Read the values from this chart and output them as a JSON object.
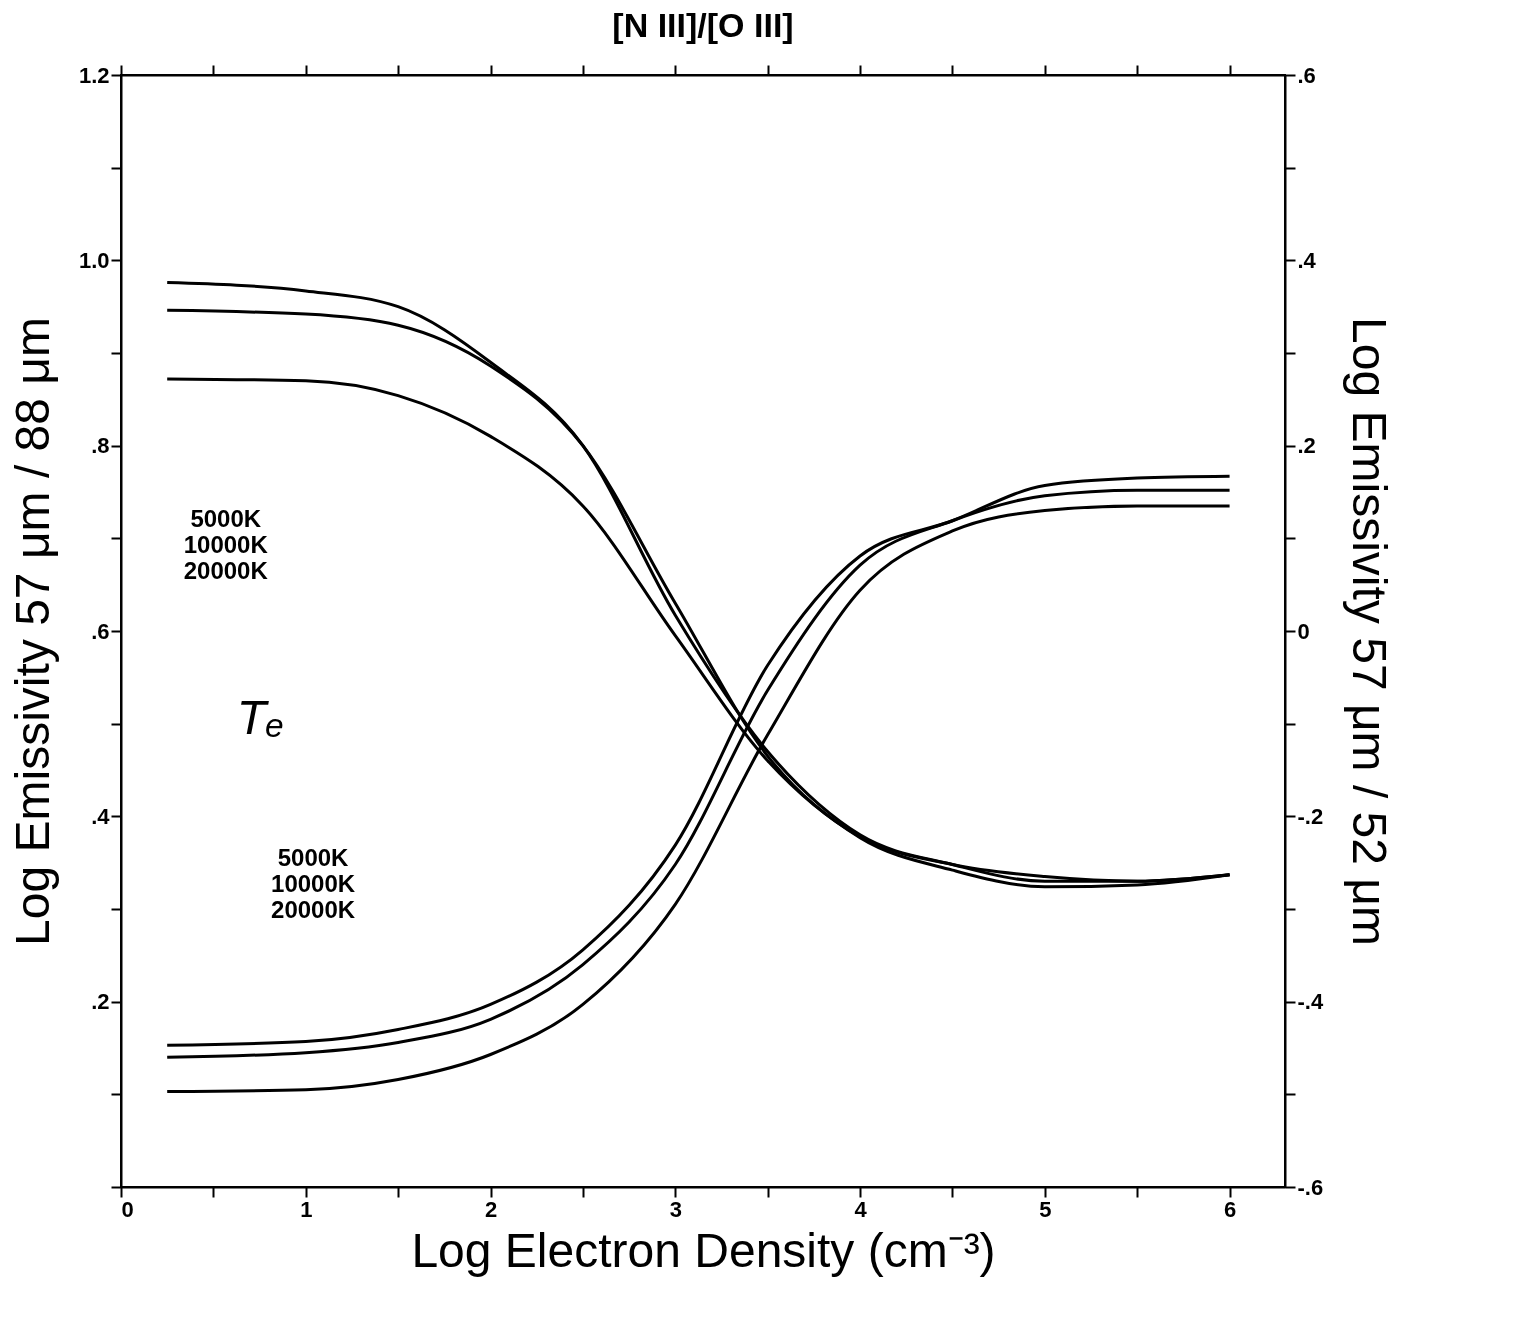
{
  "chart_data": {
    "type": "line",
    "title": "[N III]/[O III]",
    "xlabel": "Log Electron Density (cm⁻³)",
    "ylabel": "Log Emissivity 57 μm / 88 μm",
    "y2label": "Log Emissivity 57 μm / 52 μm",
    "x": [
      0.25,
      1,
      1.5,
      2,
      2.5,
      3,
      3.5,
      4,
      4.5,
      5,
      5.5,
      6
    ],
    "series": [
      {
        "color": "#000000",
        "values": [
          0.976,
          0.967,
          0.95,
          0.89,
          0.8,
          0.617,
          0.47,
          0.38,
          0.348,
          0.33,
          0.33,
          0.337
        ]
      },
      {
        "color": "#000000",
        "values": [
          0.946,
          0.942,
          0.93,
          0.886,
          0.8,
          0.63,
          0.465,
          0.377,
          0.342,
          0.324,
          0.326,
          0.337
        ]
      },
      {
        "color": "#000000",
        "values": [
          0.872,
          0.87,
          0.854,
          0.81,
          0.735,
          0.595,
          0.46,
          0.378,
          0.348,
          0.335,
          0.33,
          0.337
        ]
      },
      {
        "color": "#000000",
        "axis": "y2",
        "values": [
          -0.447,
          -0.443,
          -0.43,
          -0.403,
          -0.344,
          -0.231,
          -0.037,
          0.081,
          0.119,
          0.157,
          0.165,
          0.167
        ]
      },
      {
        "color": "#000000",
        "axis": "y2",
        "values": [
          -0.46,
          -0.455,
          -0.444,
          -0.419,
          -0.36,
          -0.252,
          -0.064,
          0.071,
          0.119,
          0.146,
          0.152,
          0.152
        ]
      },
      {
        "color": "#000000",
        "axis": "y2",
        "values": [
          -0.497,
          -0.495,
          -0.484,
          -0.457,
          -0.403,
          -0.295,
          -0.112,
          0.044,
          0.108,
          0.13,
          0.135,
          0.135
        ]
      }
    ],
    "xlim": [
      0,
      6.3
    ],
    "xticks": [
      0,
      {
        "value": 0.5,
        "label": null
      },
      1,
      {
        "value": 1.5,
        "label": null
      },
      2,
      {
        "value": 2.5,
        "label": null
      },
      3,
      {
        "value": 3.5,
        "label": null
      },
      4,
      {
        "value": 4.5,
        "label": null
      },
      5,
      {
        "value": 5.5,
        "label": null
      },
      6
    ],
    "ylim": [
      0,
      1.2
    ],
    "yticks": [
      {
        "value": 0,
        "label": null
      },
      {
        "value": 0.1,
        "label": null
      },
      {
        "value": 0.2,
        "label": ".2"
      },
      {
        "value": 0.3,
        "label": null
      },
      {
        "value": 0.4,
        "label": ".4"
      },
      {
        "value": 0.5,
        "label": null
      },
      {
        "value": 0.6,
        "label": ".6"
      },
      {
        "value": 0.7,
        "label": null
      },
      {
        "value": 0.8,
        "label": ".8"
      },
      {
        "value": 0.9,
        "label": null
      },
      {
        "value": 1.0,
        "label": "1.0"
      },
      {
        "value": 1.1,
        "label": null
      },
      {
        "value": 1.2,
        "label": "1.2"
      }
    ],
    "y2lim": [
      -0.6,
      0.6
    ],
    "y2ticks": [
      {
        "value": -0.6,
        "label": "-.6"
      },
      {
        "value": -0.5,
        "label": null
      },
      {
        "value": -0.4,
        "label": "-.4"
      },
      {
        "value": -0.3,
        "label": null
      },
      {
        "value": -0.2,
        "label": "-.2"
      },
      {
        "value": -0.1,
        "label": null
      },
      0,
      {
        "value": 0.1,
        "label": null
      },
      {
        "value": 0.2,
        "label": ".2"
      },
      {
        "value": 0.3,
        "label": null
      },
      {
        "value": 0.4,
        "label": ".4"
      },
      {
        "value": 0.5,
        "label": null
      },
      {
        "value": 0.6,
        "label": ".6"
      }
    ],
    "annotations": [
      "5000K\n10000K\n20000K",
      "5000K\n10000K\n20000K",
      "Tₑ"
    ],
    "grid": false,
    "legend": false,
    "marker": "none",
    "line_style": "solid"
  }
}
